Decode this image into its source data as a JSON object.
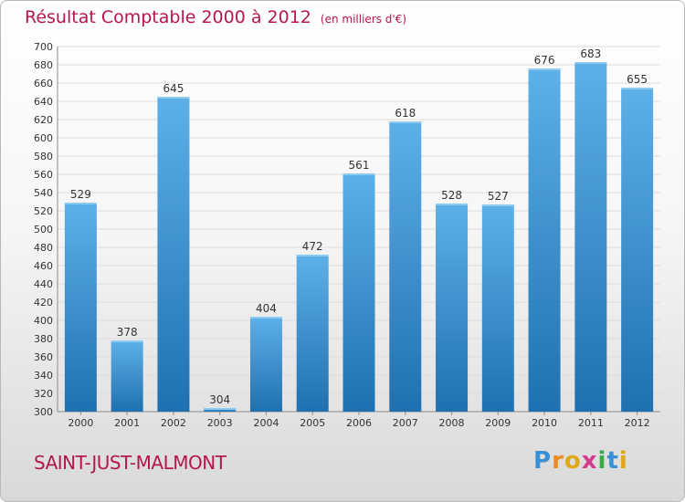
{
  "title": {
    "main": "Résultat Comptable 2000 à 2012",
    "unit": "(en milliers d'€)"
  },
  "commune": "SAINT-JUST-MALMONT",
  "logo": {
    "text": "Proxiti",
    "letters": [
      "P",
      "r",
      "o",
      "x",
      "i",
      "t",
      "i"
    ],
    "colors": [
      "#3a8fd6",
      "#f08a1c",
      "#e0a818",
      "#d63a8c",
      "#3aa94a",
      "#3a8fd6",
      "#e0a818"
    ]
  },
  "colors": {
    "bar_light": "#5eb0e8",
    "bar_dark": "#1f70b0",
    "grid": "#dcdcdc",
    "title": "#b5174a"
  },
  "chart_data": {
    "type": "bar",
    "title": "Résultat Comptable 2000 à 2012",
    "subtitle": "(en milliers d'€)",
    "xlabel": "",
    "ylabel": "",
    "categories": [
      "2000",
      "2001",
      "2002",
      "2003",
      "2004",
      "2005",
      "2006",
      "2007",
      "2008",
      "2009",
      "2010",
      "2011",
      "2012"
    ],
    "values": [
      529,
      378,
      645,
      304,
      404,
      472,
      561,
      618,
      528,
      527,
      676,
      683,
      655
    ],
    "ylim": [
      300,
      700
    ],
    "yticks": [
      300,
      320,
      340,
      360,
      380,
      400,
      420,
      440,
      460,
      480,
      500,
      520,
      540,
      560,
      580,
      600,
      620,
      640,
      660,
      680,
      700
    ],
    "grid": true,
    "legend": "none"
  }
}
